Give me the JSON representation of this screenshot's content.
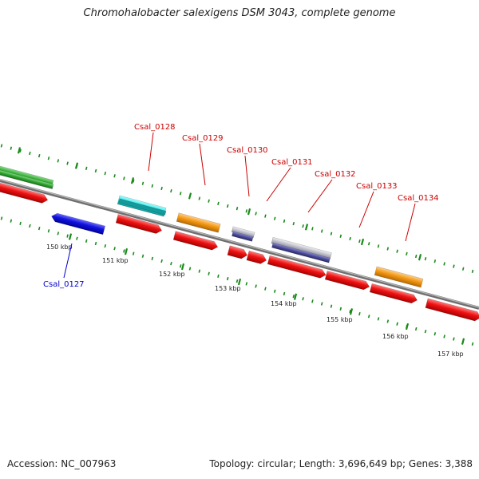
{
  "title": "Chromohalobacter salexigens DSM 3043, complete genome",
  "footer": {
    "accession": "Accession: NC_007963",
    "stats": "Topology: circular; Length: 3,696,649 bp; Genes: 3,388"
  },
  "colors": {
    "background": "#ffffff",
    "backbone": "#8a8a8a",
    "tick": "#1a8a1a",
    "cds_red": "#ee1111",
    "cds_blue": "#1111dd",
    "cds_cyan": "#22e8e8",
    "cds_orange": "#f59a16",
    "cds_green": "#33aa33",
    "cds_gray": "#bcbcc8",
    "cds_purple": "#4a4a9a",
    "label_red": "#cc0000",
    "label_blue": "#0000cc"
  },
  "ticks": [
    {
      "label": "150 kbp"
    },
    {
      "label": "151 kbp"
    },
    {
      "label": "152 kbp"
    },
    {
      "label": "153 kbp"
    },
    {
      "label": "154 kbp"
    },
    {
      "label": "155 kbp"
    },
    {
      "label": "156 kbp"
    },
    {
      "label": "157 kbp"
    }
  ],
  "gene_labels": [
    {
      "name": "Csal_0127",
      "color": "#0000cc"
    },
    {
      "name": "Csal_0128",
      "color": "#cc0000"
    },
    {
      "name": "Csal_0129",
      "color": "#cc0000"
    },
    {
      "name": "Csal_0130",
      "color": "#cc0000"
    },
    {
      "name": "Csal_0131",
      "color": "#cc0000"
    },
    {
      "name": "Csal_0132",
      "color": "#cc0000"
    },
    {
      "name": "Csal_0133",
      "color": "#cc0000"
    },
    {
      "name": "Csal_0134",
      "color": "#cc0000"
    }
  ]
}
